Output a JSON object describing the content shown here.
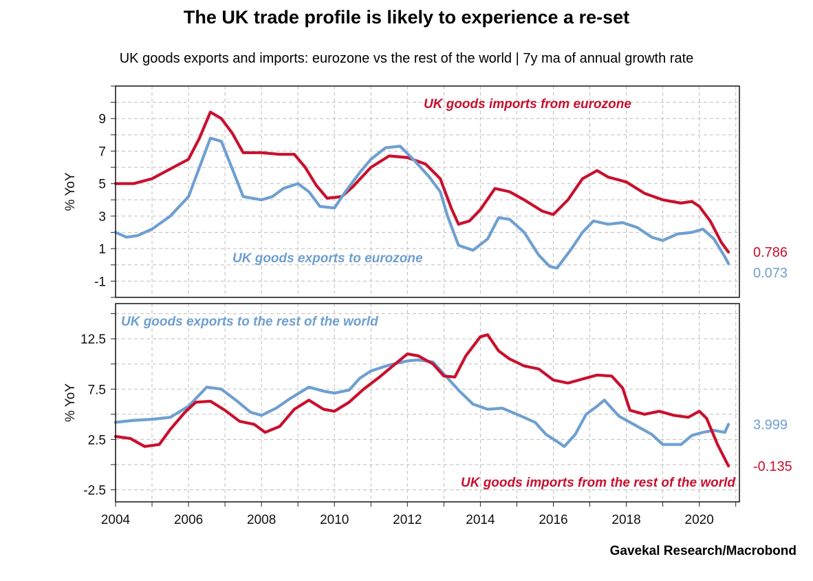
{
  "title": "The UK trade profile is likely to experience a re-set",
  "subtitle": "UK goods exports and imports: eurozone vs the rest of the world | 7y ma of annual growth rate",
  "source": "Gavekal Research/Macrobond",
  "colors": {
    "imports": "#c8102e",
    "exports": "#6f9fd0"
  },
  "chart_data": [
    {
      "type": "line",
      "panel": "top",
      "ylabel": "% YoY",
      "ylim": [
        -2,
        11
      ],
      "yticks": [
        -1,
        1,
        3,
        5,
        7,
        9
      ],
      "yticklabels": [
        "-1",
        "1",
        "3",
        "5",
        "7",
        "9"
      ],
      "xlim": [
        2004.0,
        2021.1
      ],
      "xticks": [
        2004,
        2006,
        2008,
        2010,
        2012,
        2014,
        2016,
        2018,
        2020
      ],
      "series": [
        {
          "name": "UK goods imports from eurozone",
          "color": "#c8102e",
          "label_pos": "top-center",
          "end_label": "0.786",
          "points": [
            [
              2004.0,
              5.0
            ],
            [
              2004.5,
              5.0
            ],
            [
              2005.0,
              5.3
            ],
            [
              2005.5,
              5.9
            ],
            [
              2006.0,
              6.5
            ],
            [
              2006.3,
              7.8
            ],
            [
              2006.6,
              9.4
            ],
            [
              2006.9,
              9.0
            ],
            [
              2007.2,
              8.1
            ],
            [
              2007.5,
              6.9
            ],
            [
              2008.0,
              6.9
            ],
            [
              2008.5,
              6.8
            ],
            [
              2008.9,
              6.8
            ],
            [
              2009.2,
              6.0
            ],
            [
              2009.5,
              4.9
            ],
            [
              2009.8,
              4.1
            ],
            [
              2010.2,
              4.2
            ],
            [
              2010.5,
              4.8
            ],
            [
              2011.0,
              6.0
            ],
            [
              2011.5,
              6.7
            ],
            [
              2012.0,
              6.6
            ],
            [
              2012.5,
              6.2
            ],
            [
              2012.9,
              5.3
            ],
            [
              2013.2,
              3.5
            ],
            [
              2013.4,
              2.5
            ],
            [
              2013.7,
              2.7
            ],
            [
              2014.0,
              3.4
            ],
            [
              2014.4,
              4.7
            ],
            [
              2014.8,
              4.5
            ],
            [
              2015.2,
              4.0
            ],
            [
              2015.7,
              3.3
            ],
            [
              2016.0,
              3.1
            ],
            [
              2016.4,
              4.0
            ],
            [
              2016.8,
              5.3
            ],
            [
              2017.2,
              5.8
            ],
            [
              2017.5,
              5.4
            ],
            [
              2018.0,
              5.1
            ],
            [
              2018.5,
              4.4
            ],
            [
              2019.0,
              4.0
            ],
            [
              2019.5,
              3.8
            ],
            [
              2019.8,
              3.9
            ],
            [
              2020.0,
              3.6
            ],
            [
              2020.3,
              2.7
            ],
            [
              2020.6,
              1.4
            ],
            [
              2020.8,
              0.786
            ]
          ]
        },
        {
          "name": "UK goods exports to eurozone",
          "color": "#6f9fd0",
          "label_pos": "lower-center",
          "end_label": "0.073",
          "points": [
            [
              2004.0,
              2.0
            ],
            [
              2004.3,
              1.7
            ],
            [
              2004.6,
              1.8
            ],
            [
              2005.0,
              2.2
            ],
            [
              2005.5,
              3.0
            ],
            [
              2006.0,
              4.2
            ],
            [
              2006.3,
              6.0
            ],
            [
              2006.6,
              7.8
            ],
            [
              2006.9,
              7.6
            ],
            [
              2007.2,
              5.9
            ],
            [
              2007.5,
              4.2
            ],
            [
              2008.0,
              4.0
            ],
            [
              2008.3,
              4.2
            ],
            [
              2008.6,
              4.7
            ],
            [
              2009.0,
              5.0
            ],
            [
              2009.3,
              4.5
            ],
            [
              2009.6,
              3.6
            ],
            [
              2010.0,
              3.5
            ],
            [
              2010.3,
              4.5
            ],
            [
              2010.7,
              5.7
            ],
            [
              2011.0,
              6.5
            ],
            [
              2011.4,
              7.2
            ],
            [
              2011.8,
              7.3
            ],
            [
              2012.2,
              6.4
            ],
            [
              2012.6,
              5.4
            ],
            [
              2012.9,
              4.5
            ],
            [
              2013.1,
              3.0
            ],
            [
              2013.4,
              1.2
            ],
            [
              2013.8,
              0.9
            ],
            [
              2014.2,
              1.6
            ],
            [
              2014.5,
              2.9
            ],
            [
              2014.8,
              2.8
            ],
            [
              2015.2,
              2.0
            ],
            [
              2015.6,
              0.6
            ],
            [
              2015.9,
              -0.1
            ],
            [
              2016.1,
              -0.2
            ],
            [
              2016.5,
              1.0
            ],
            [
              2016.8,
              2.0
            ],
            [
              2017.1,
              2.7
            ],
            [
              2017.5,
              2.5
            ],
            [
              2017.9,
              2.6
            ],
            [
              2018.3,
              2.3
            ],
            [
              2018.7,
              1.7
            ],
            [
              2019.0,
              1.5
            ],
            [
              2019.4,
              1.9
            ],
            [
              2019.8,
              2.0
            ],
            [
              2020.1,
              2.2
            ],
            [
              2020.4,
              1.6
            ],
            [
              2020.7,
              0.5
            ],
            [
              2020.8,
              0.073
            ]
          ]
        }
      ]
    },
    {
      "type": "line",
      "panel": "bottom",
      "ylabel": "% YoY",
      "ylim": [
        -3.7,
        16.0
      ],
      "yticks": [
        -2.5,
        2.5,
        7.5,
        12.5
      ],
      "yticklabels": [
        "-2.5",
        "2.5",
        "7.5",
        "12.5"
      ],
      "xlim": [
        2004.0,
        2021.1
      ],
      "xticks": [
        2004,
        2006,
        2008,
        2010,
        2012,
        2014,
        2016,
        2018,
        2020
      ],
      "xticklabels": [
        "2004",
        "2006",
        "2008",
        "2010",
        "2012",
        "2014",
        "2016",
        "2018",
        "2020"
      ],
      "series": [
        {
          "name": "UK goods exports to the rest of the world",
          "color": "#6f9fd0",
          "label_pos": "top-left",
          "end_label": "3.999",
          "points": [
            [
              2004.0,
              4.2
            ],
            [
              2004.5,
              4.4
            ],
            [
              2005.0,
              4.5
            ],
            [
              2005.5,
              4.7
            ],
            [
              2006.0,
              5.8
            ],
            [
              2006.5,
              7.7
            ],
            [
              2006.9,
              7.5
            ],
            [
              2007.3,
              6.4
            ],
            [
              2007.7,
              5.2
            ],
            [
              2008.0,
              4.9
            ],
            [
              2008.4,
              5.6
            ],
            [
              2008.8,
              6.6
            ],
            [
              2009.3,
              7.7
            ],
            [
              2009.7,
              7.3
            ],
            [
              2010.0,
              7.1
            ],
            [
              2010.4,
              7.4
            ],
            [
              2010.7,
              8.6
            ],
            [
              2011.0,
              9.3
            ],
            [
              2011.5,
              9.9
            ],
            [
              2012.0,
              10.3
            ],
            [
              2012.3,
              10.4
            ],
            [
              2012.7,
              10.2
            ],
            [
              2013.0,
              9.0
            ],
            [
              2013.4,
              7.4
            ],
            [
              2013.8,
              6.0
            ],
            [
              2014.2,
              5.5
            ],
            [
              2014.6,
              5.6
            ],
            [
              2015.0,
              5.0
            ],
            [
              2015.5,
              4.2
            ],
            [
              2015.8,
              3.0
            ],
            [
              2016.1,
              2.3
            ],
            [
              2016.3,
              1.8
            ],
            [
              2016.6,
              3.0
            ],
            [
              2016.9,
              5.0
            ],
            [
              2017.2,
              5.8
            ],
            [
              2017.4,
              6.4
            ],
            [
              2017.8,
              4.8
            ],
            [
              2018.2,
              4.0
            ],
            [
              2018.7,
              3.0
            ],
            [
              2019.0,
              2.0
            ],
            [
              2019.5,
              2.0
            ],
            [
              2019.8,
              2.9
            ],
            [
              2020.1,
              3.2
            ],
            [
              2020.4,
              3.4
            ],
            [
              2020.7,
              3.2
            ],
            [
              2020.8,
              3.999
            ]
          ]
        },
        {
          "name": "UK goods imports from the rest of the world",
          "color": "#c8102e",
          "label_pos": "bottom-right",
          "end_label": "-0.135",
          "points": [
            [
              2004.0,
              2.8
            ],
            [
              2004.4,
              2.6
            ],
            [
              2004.8,
              1.8
            ],
            [
              2005.2,
              2.0
            ],
            [
              2005.5,
              3.5
            ],
            [
              2005.9,
              5.2
            ],
            [
              2006.2,
              6.2
            ],
            [
              2006.6,
              6.3
            ],
            [
              2007.0,
              5.4
            ],
            [
              2007.4,
              4.3
            ],
            [
              2007.8,
              4.0
            ],
            [
              2008.1,
              3.2
            ],
            [
              2008.5,
              3.8
            ],
            [
              2008.9,
              5.5
            ],
            [
              2009.3,
              6.4
            ],
            [
              2009.7,
              5.5
            ],
            [
              2010.0,
              5.3
            ],
            [
              2010.4,
              6.2
            ],
            [
              2010.8,
              7.5
            ],
            [
              2011.2,
              8.6
            ],
            [
              2011.6,
              9.8
            ],
            [
              2012.0,
              11.0
            ],
            [
              2012.3,
              10.8
            ],
            [
              2012.7,
              10.0
            ],
            [
              2013.0,
              8.8
            ],
            [
              2013.3,
              8.7
            ],
            [
              2013.6,
              10.8
            ],
            [
              2014.0,
              12.7
            ],
            [
              2014.2,
              12.9
            ],
            [
              2014.5,
              11.3
            ],
            [
              2014.8,
              10.5
            ],
            [
              2015.2,
              9.8
            ],
            [
              2015.6,
              9.5
            ],
            [
              2016.0,
              8.4
            ],
            [
              2016.4,
              8.1
            ],
            [
              2016.8,
              8.5
            ],
            [
              2017.2,
              8.9
            ],
            [
              2017.6,
              8.8
            ],
            [
              2017.9,
              7.6
            ],
            [
              2018.1,
              5.4
            ],
            [
              2018.5,
              5.0
            ],
            [
              2018.9,
              5.3
            ],
            [
              2019.3,
              4.9
            ],
            [
              2019.7,
              4.7
            ],
            [
              2020.0,
              5.3
            ],
            [
              2020.2,
              4.6
            ],
            [
              2020.5,
              2.0
            ],
            [
              2020.8,
              -0.135
            ]
          ]
        }
      ]
    }
  ]
}
